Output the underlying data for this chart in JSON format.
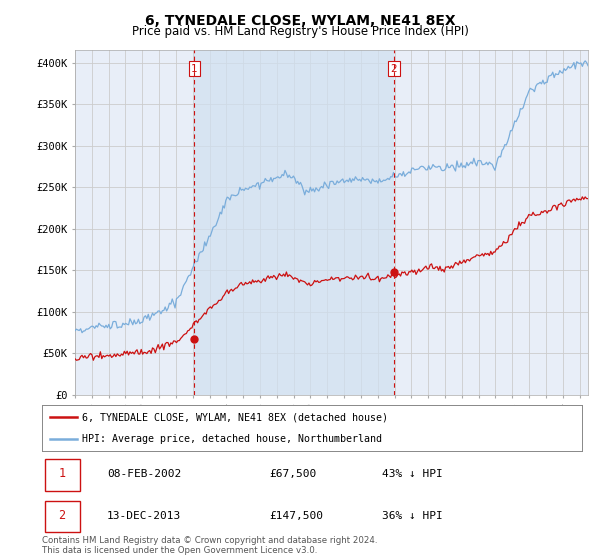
{
  "title": "6, TYNEDALE CLOSE, WYLAM, NE41 8EX",
  "subtitle": "Price paid vs. HM Land Registry's House Price Index (HPI)",
  "title_fontsize": 10,
  "subtitle_fontsize": 8.5,
  "ylabel_ticks": [
    "£0",
    "£50K",
    "£100K",
    "£150K",
    "£200K",
    "£250K",
    "£300K",
    "£350K",
    "£400K"
  ],
  "ytick_values": [
    0,
    50000,
    100000,
    150000,
    200000,
    250000,
    300000,
    350000,
    400000
  ],
  "ylim": [
    0,
    415000
  ],
  "xlim_start": 1995.0,
  "xlim_end": 2025.5,
  "hpi_color": "#7aaddb",
  "price_color": "#cc1111",
  "marker_color": "#cc1111",
  "annotation_color": "#cc1111",
  "grid_color": "#cccccc",
  "bg_color": "#e8eef8",
  "shade_color": "#d0e0f0",
  "legend_label_price": "6, TYNEDALE CLOSE, WYLAM, NE41 8EX (detached house)",
  "legend_label_hpi": "HPI: Average price, detached house, Northumberland",
  "sale1_date": "08-FEB-2002",
  "sale1_price": "£67,500",
  "sale1_pct": "43% ↓ HPI",
  "sale1_year": 2002.1,
  "sale1_value": 67500,
  "sale2_date": "13-DEC-2013",
  "sale2_price": "£147,500",
  "sale2_pct": "36% ↓ HPI",
  "sale2_year": 2013.95,
  "sale2_value": 147500,
  "footer1": "Contains HM Land Registry data © Crown copyright and database right 2024.",
  "footer2": "This data is licensed under the Open Government Licence v3.0.",
  "dashed_line1_x": 2002.1,
  "dashed_line2_x": 2013.95
}
